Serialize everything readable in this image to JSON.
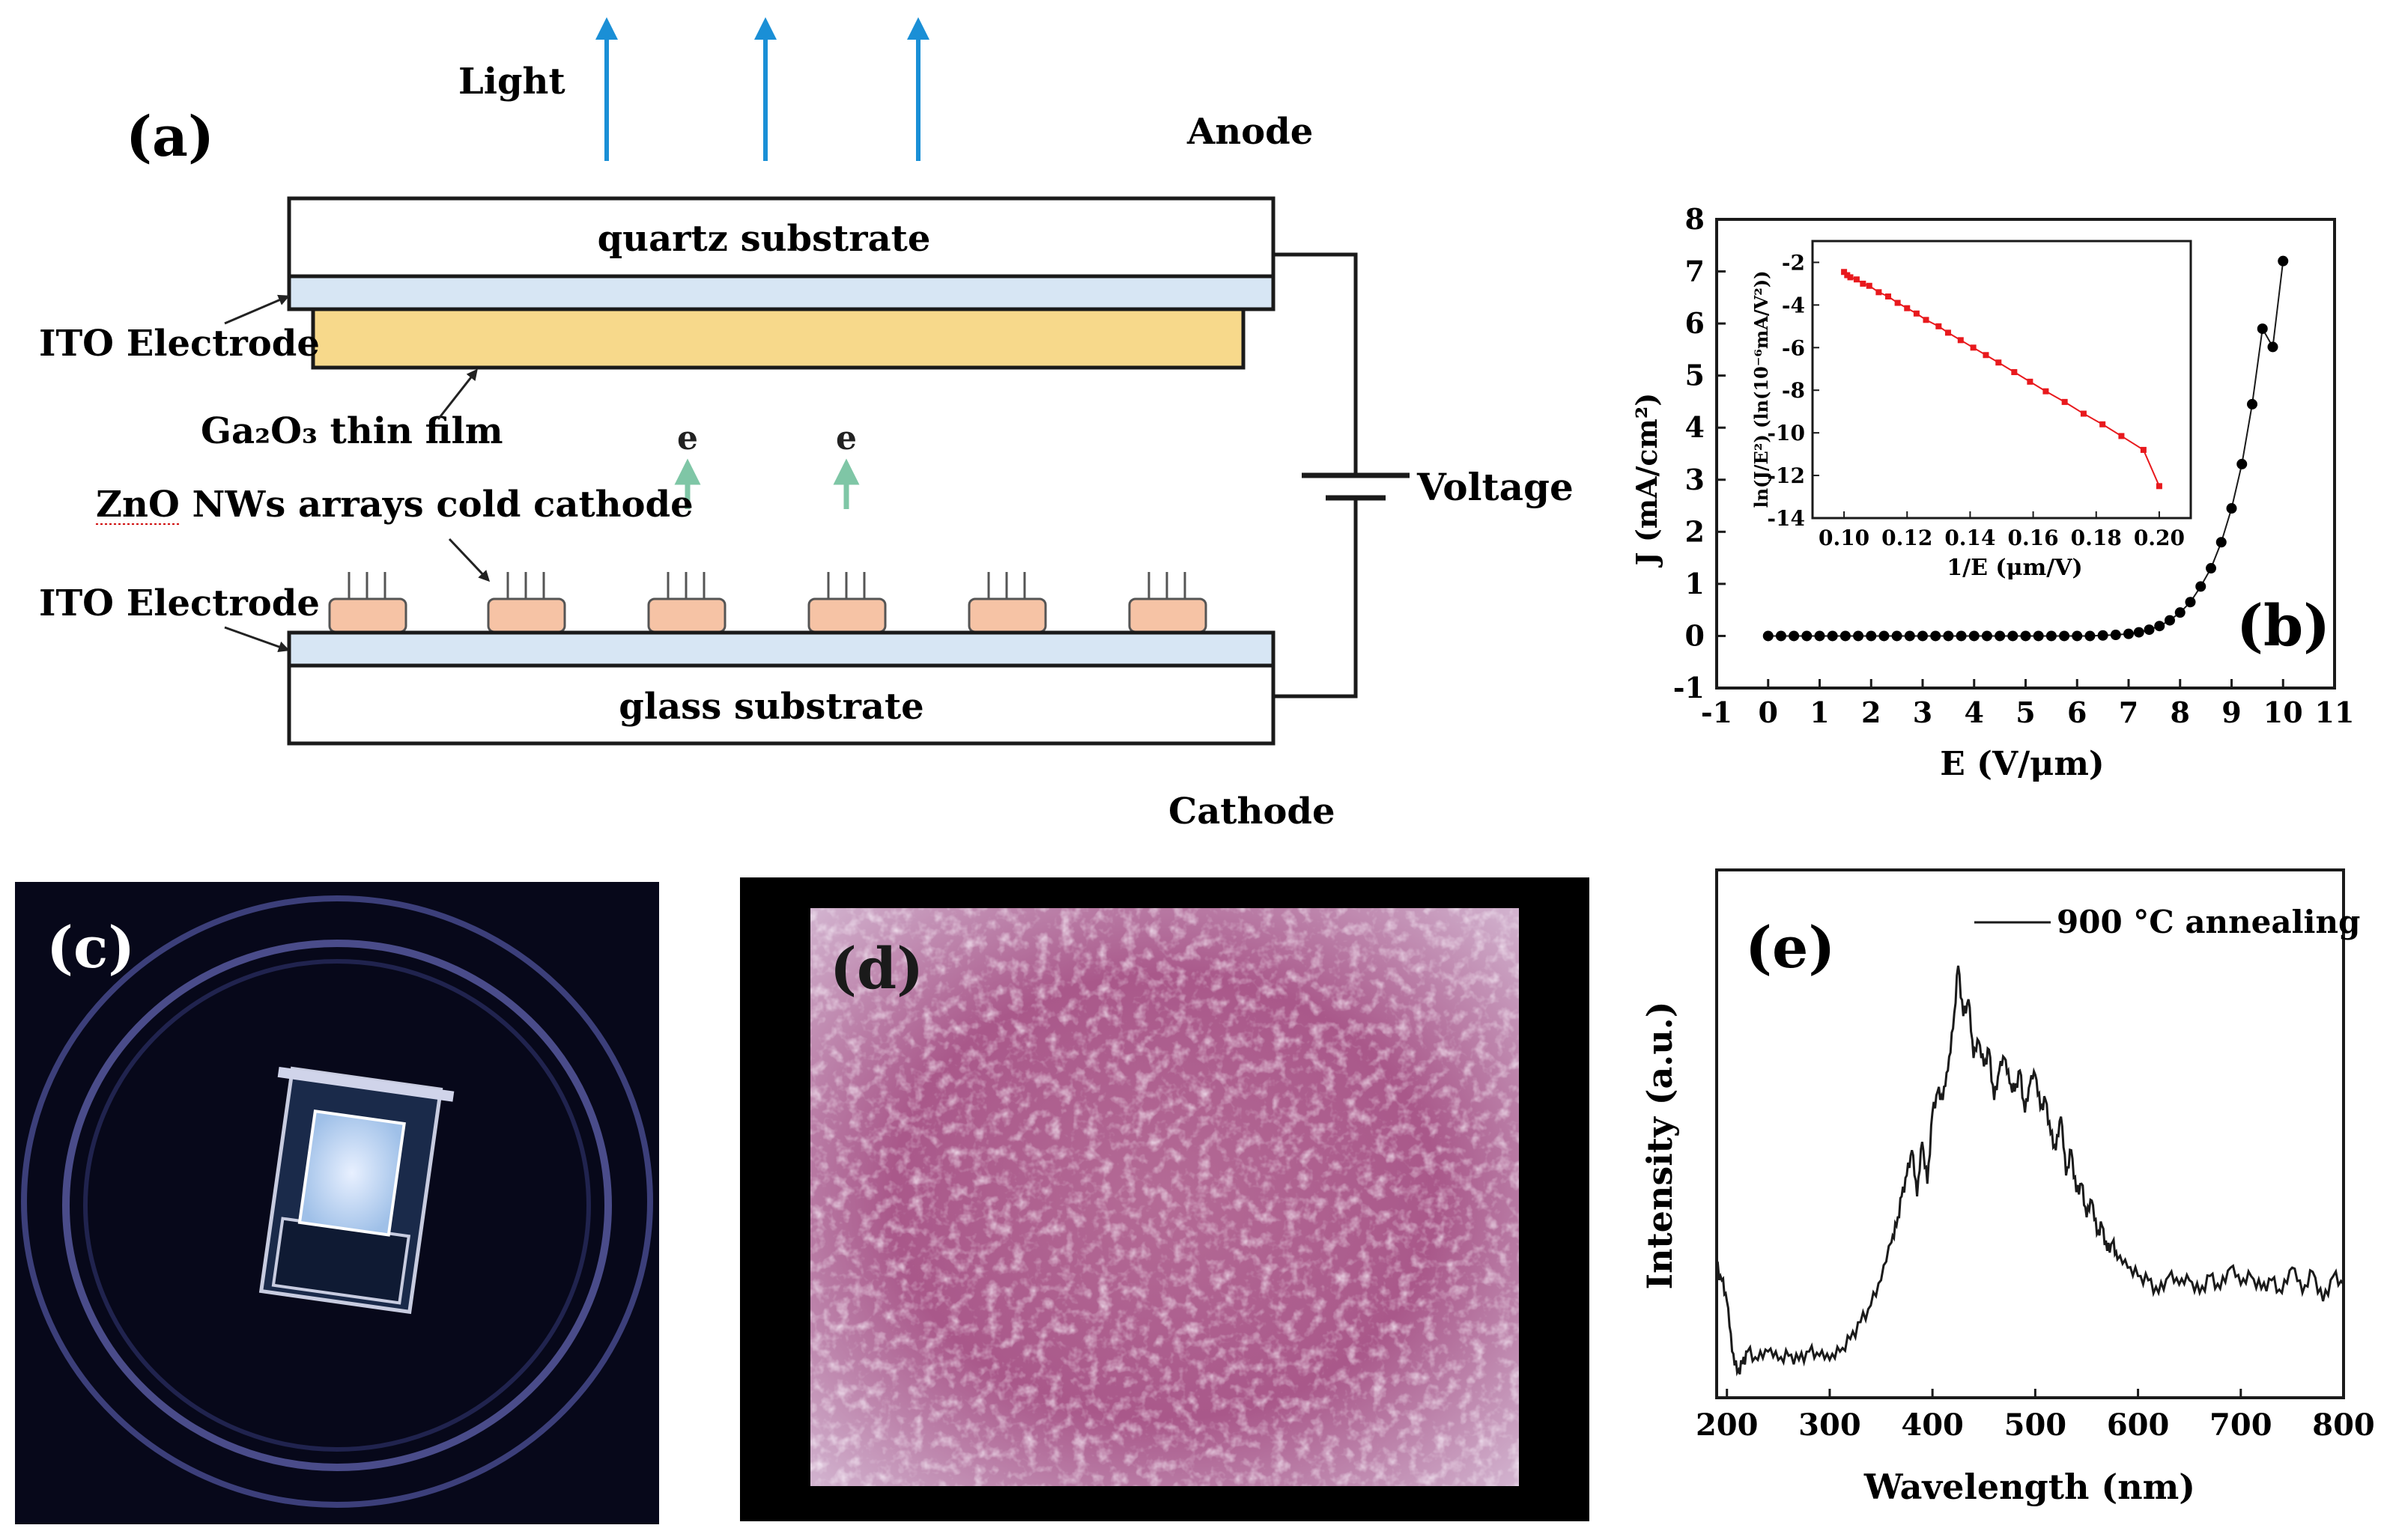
{
  "panel_a": {
    "label": "(a)",
    "light_label": "Light",
    "anode_label": "Anode",
    "cathode_label": "Cathode",
    "voltage_label": "Voltage",
    "quartz_label": "quartz substrate",
    "glass_label": "glass substrate",
    "ito_top_label": "ITO Electrode",
    "ito_bottom_label": "ITO Electrode",
    "ga2o3_label": "Ga₂O₃ thin film",
    "zno_label": "ZnO NWs arrays cold cathode",
    "electron_label": "e",
    "colors": {
      "light_arrow": "#1a8fd6",
      "film": "#f7d98b",
      "ito": "#d7e6f4",
      "nw_block": "#f6c3a5",
      "electron_arrow": "#7fc6a6"
    }
  },
  "panel_b": {
    "label": "(b)",
    "inset": {
      "xlabel": "1/E (μm/V)",
      "ylabel": "ln(J/E²) (ln(10⁻⁶mA/V²))"
    }
  },
  "panel_c": {
    "label": "(c)"
  },
  "panel_d": {
    "label": "(d)"
  },
  "panel_e": {
    "label": "(e)",
    "legend": "900 °C annealing"
  },
  "chart_data": [
    {
      "type": "scatter",
      "id": "b-main",
      "title": "",
      "xlabel": "E (V/μm)",
      "ylabel": "J (mA/cm²)",
      "xlim": [
        -1,
        11
      ],
      "ylim": [
        -1,
        8
      ],
      "xticks": [
        -1,
        0,
        1,
        2,
        3,
        4,
        5,
        6,
        7,
        8,
        9,
        10,
        11
      ],
      "yticks": [
        -1,
        0,
        1,
        2,
        3,
        4,
        5,
        6,
        7,
        8
      ],
      "x": [
        0,
        0.25,
        0.5,
        0.75,
        1,
        1.25,
        1.5,
        1.75,
        2,
        2.25,
        2.5,
        2.75,
        3,
        3.25,
        3.5,
        3.75,
        4,
        4.25,
        4.5,
        4.75,
        5,
        5.25,
        5.5,
        5.75,
        6,
        6.25,
        6.5,
        6.75,
        7,
        7.2,
        7.4,
        7.6,
        7.8,
        8.0,
        8.2,
        8.4,
        8.6,
        8.8,
        9.0,
        9.2,
        9.4,
        9.6,
        9.8,
        10.0
      ],
      "y": [
        0,
        0,
        0,
        0,
        0,
        0,
        0,
        0,
        0,
        0,
        0,
        0,
        0,
        0,
        0,
        0,
        0,
        0,
        0,
        0,
        0,
        0,
        0,
        0,
        0,
        0,
        0.01,
        0.02,
        0.04,
        0.07,
        0.12,
        0.19,
        0.3,
        0.45,
        0.65,
        0.95,
        1.3,
        1.8,
        2.45,
        3.3,
        4.45,
        5.9,
        5.55,
        7.2
      ],
      "marker_color": "#000000"
    },
    {
      "type": "scatter",
      "id": "b-inset",
      "xlabel": "1/E (μm/V)",
      "ylabel": "ln(J/E²) (ln(10⁻⁶mA/V²))",
      "xlim": [
        0.09,
        0.21
      ],
      "ylim": [
        -14,
        -1
      ],
      "xticks": [
        0.1,
        0.12,
        0.14,
        0.16,
        0.18,
        0.2
      ],
      "yticks": [
        -2,
        -4,
        -6,
        -8,
        -10,
        -12,
        -14
      ],
      "x": [
        0.1,
        0.101,
        0.102,
        0.104,
        0.106,
        0.108,
        0.111,
        0.114,
        0.117,
        0.12,
        0.123,
        0.126,
        0.13,
        0.133,
        0.137,
        0.141,
        0.145,
        0.149,
        0.154,
        0.159,
        0.164,
        0.17,
        0.176,
        0.182,
        0.188,
        0.195,
        0.2
      ],
      "y": [
        -2.45,
        -2.6,
        -2.7,
        -2.8,
        -3.0,
        -3.1,
        -3.4,
        -3.6,
        -3.9,
        -4.15,
        -4.4,
        -4.7,
        -5.0,
        -5.3,
        -5.65,
        -6.0,
        -6.35,
        -6.7,
        -7.15,
        -7.6,
        -8.05,
        -8.55,
        -9.1,
        -9.6,
        -10.15,
        -10.8,
        -12.5
      ],
      "marker_color": "#e8191d"
    },
    {
      "type": "line",
      "id": "e-spectrum",
      "xlabel": "Wavelength (nm)",
      "ylabel": "Intensity (a.u.)",
      "xlim": [
        190,
        800
      ],
      "ylim": [
        0,
        1
      ],
      "xticks": [
        200,
        300,
        400,
        500,
        600,
        700,
        800
      ],
      "series": [
        {
          "name": "900 °C annealing",
          "x": [
            190,
            195,
            200,
            205,
            210,
            215,
            220,
            230,
            240,
            250,
            260,
            270,
            280,
            290,
            300,
            310,
            320,
            330,
            340,
            350,
            360,
            365,
            370,
            375,
            380,
            385,
            390,
            395,
            400,
            405,
            410,
            415,
            420,
            425,
            430,
            435,
            440,
            445,
            450,
            455,
            460,
            465,
            470,
            475,
            480,
            485,
            490,
            495,
            500,
            505,
            510,
            515,
            520,
            525,
            530,
            535,
            540,
            545,
            550,
            555,
            560,
            565,
            570,
            575,
            580,
            590,
            600,
            610,
            620,
            630,
            640,
            650,
            660,
            670,
            680,
            690,
            700,
            710,
            720,
            730,
            740,
            750,
            760,
            770,
            780,
            790,
            800
          ],
          "y": [
            0.28,
            0.25,
            0.2,
            0.08,
            0.03,
            0.05,
            0.08,
            0.06,
            0.08,
            0.06,
            0.07,
            0.06,
            0.08,
            0.07,
            0.06,
            0.08,
            0.11,
            0.15,
            0.19,
            0.25,
            0.34,
            0.38,
            0.45,
            0.5,
            0.56,
            0.45,
            0.58,
            0.48,
            0.65,
            0.7,
            0.68,
            0.75,
            0.85,
            1.0,
            0.88,
            0.92,
            0.78,
            0.82,
            0.76,
            0.8,
            0.68,
            0.75,
            0.78,
            0.72,
            0.7,
            0.75,
            0.65,
            0.72,
            0.74,
            0.66,
            0.68,
            0.6,
            0.56,
            0.64,
            0.5,
            0.56,
            0.46,
            0.48,
            0.4,
            0.44,
            0.36,
            0.38,
            0.32,
            0.34,
            0.3,
            0.28,
            0.26,
            0.25,
            0.22,
            0.26,
            0.24,
            0.25,
            0.22,
            0.26,
            0.23,
            0.28,
            0.24,
            0.26,
            0.23,
            0.25,
            0.22,
            0.28,
            0.22,
            0.27,
            0.2,
            0.26,
            0.24
          ]
        }
      ],
      "legend_position": "top-right"
    }
  ]
}
